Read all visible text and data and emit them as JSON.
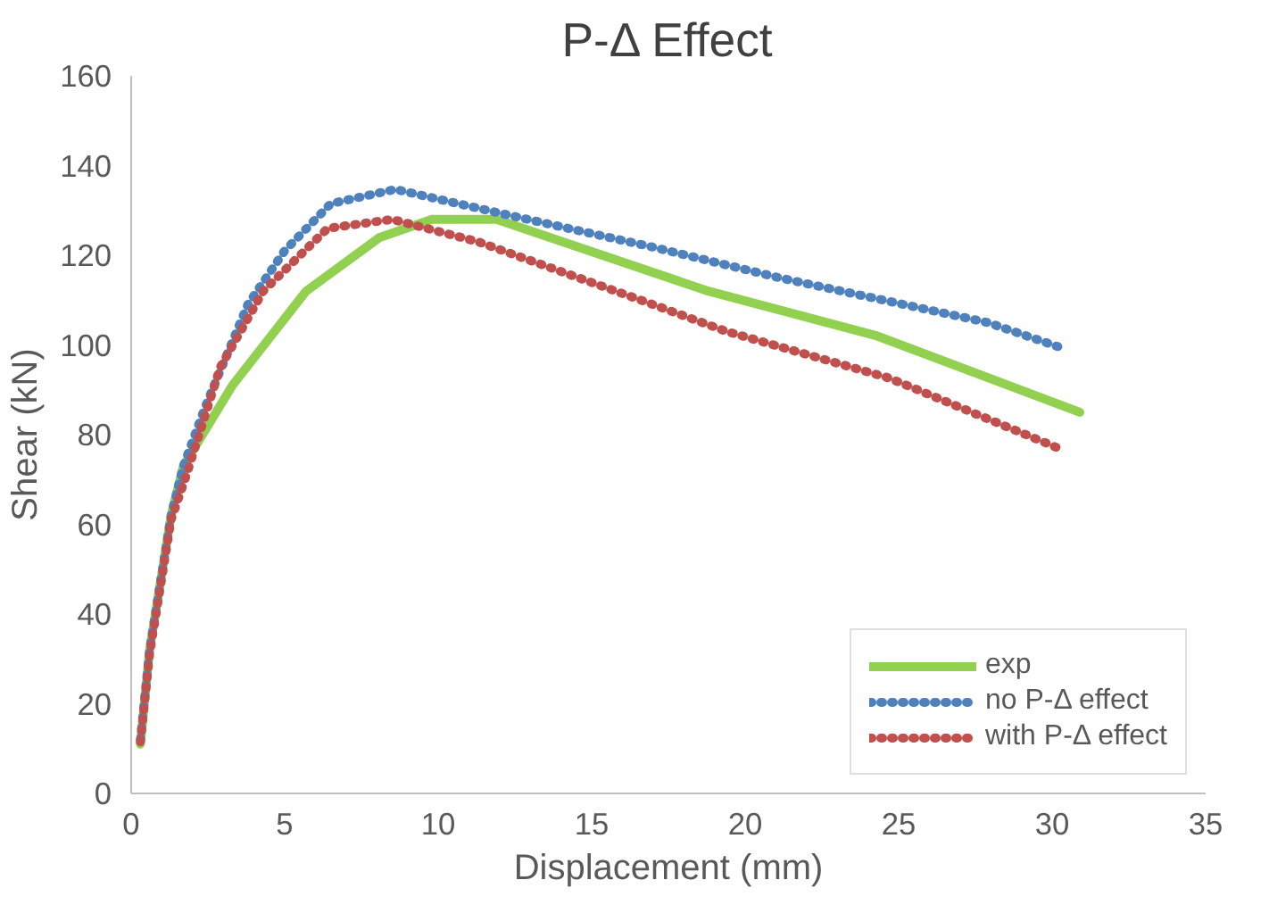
{
  "chart_data": {
    "type": "line",
    "title": "P-Δ Effect",
    "xlabel": "Displacement (mm)",
    "ylabel": "Shear (kN)",
    "xlim": [
      0,
      35
    ],
    "xticks": [
      0,
      5,
      10,
      15,
      20,
      25,
      30,
      35
    ],
    "ylim": [
      0,
      160
    ],
    "yticks": [
      0,
      20,
      40,
      60,
      80,
      100,
      120,
      140,
      160
    ],
    "grid": false,
    "legend": "bottom right",
    "series": [
      {
        "name": "exp",
        "color": "#92d050",
        "line_style": "solid",
        "x": [
          0.3,
          0.6,
          1.3,
          1.7,
          3.3,
          5.7,
          8.1,
          9.8,
          11.9,
          18.8,
          24.3,
          30.9
        ],
        "values": [
          11,
          32,
          62,
          73,
          91,
          112,
          124,
          128,
          128,
          112,
          102,
          85
        ]
      },
      {
        "name": "no P-Δ effect",
        "color": "#4f81bd",
        "line_style": "dotted",
        "x": [
          0.3,
          0.6,
          1.3,
          1.7,
          2.4,
          3.8,
          5.0,
          6.5,
          8.6,
          12.0,
          17.0,
          21.1,
          27.9,
          30.2
        ],
        "values": [
          12,
          32,
          62,
          73,
          86,
          109,
          121,
          131.5,
          134.7,
          129.4,
          121.8,
          115,
          105,
          99.6
        ]
      },
      {
        "name": "with P-Δ effect",
        "color": "#c0504d",
        "line_style": "dotted",
        "x": [
          0.3,
          0.6,
          1.3,
          1.8,
          2.9,
          4.3,
          6.4,
          8.5,
          11.3,
          16.6,
          19.4,
          24.7,
          30.2
        ],
        "values": [
          11.5,
          31,
          61,
          71,
          95,
          112,
          126,
          128,
          123,
          110,
          103,
          92.6,
          77
        ]
      }
    ]
  }
}
